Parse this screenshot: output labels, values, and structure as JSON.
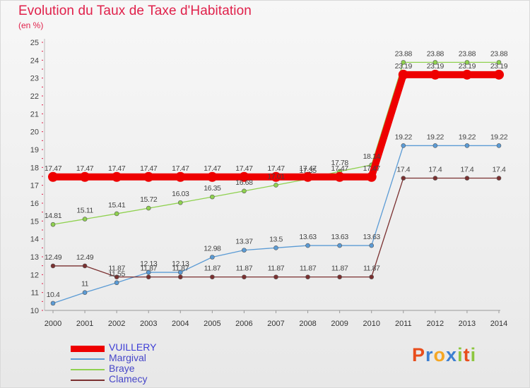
{
  "title": "Evolution du Taux de Taxe d'Habitation",
  "subtitle": "(en %)",
  "logo": {
    "letters": [
      "P",
      "r",
      "o",
      "x",
      "i",
      "t",
      "i"
    ],
    "colors": [
      "#e84d1c",
      "#3d7fd1",
      "#f5a623",
      "#3d7fd1",
      "#8dc63f",
      "#e84d1c",
      "#8dc63f"
    ]
  },
  "chart_data": {
    "type": "line",
    "title": "Evolution du Taux de Taxe d'Habitation",
    "ylabel": "(en %)",
    "xlabel": "",
    "x": [
      "2000",
      "2001",
      "2002",
      "2003",
      "2004",
      "2005",
      "2006",
      "2007",
      "2008",
      "2009",
      "2010",
      "2011",
      "2012",
      "2013",
      "2014"
    ],
    "ylim": [
      10,
      25
    ],
    "yticks": [
      10,
      11,
      12,
      13,
      14,
      15,
      16,
      17,
      18,
      19,
      20,
      21,
      22,
      23,
      24,
      25
    ],
    "grid": false,
    "legend": "bottom-left",
    "series": [
      {
        "name": "VUILLERY",
        "color": "#ee0000",
        "emphasis": true,
        "values": [
          17.47,
          17.47,
          17.47,
          17.47,
          17.47,
          17.47,
          17.47,
          17.47,
          17.47,
          17.47,
          17.47,
          23.19,
          23.19,
          23.19,
          23.19
        ],
        "labels": [
          "17.47",
          "17.47",
          "17.47",
          "17.47",
          "17.47",
          "17.47",
          "17.47",
          "17.47",
          "17.47",
          "17.47",
          "17.47",
          "23.19",
          "23.19",
          "23.19",
          "23.19"
        ]
      },
      {
        "name": "Margival",
        "color": "#5b9bd5",
        "values": [
          10.4,
          11,
          11.55,
          12.13,
          12.13,
          12.98,
          13.37,
          13.5,
          13.63,
          13.63,
          13.63,
          19.22,
          19.22,
          19.22,
          19.22
        ],
        "labels": [
          "10.4",
          "11",
          "11.55",
          "12.13",
          "12.13",
          "12.98",
          "13.37",
          "13.5",
          "13.63",
          "13.63",
          "13.63",
          "19.22",
          "19.22",
          "19.22",
          "19.22"
        ]
      },
      {
        "name": "Braye",
        "color": "#8fd14f",
        "values": [
          14.81,
          15.11,
          15.41,
          15.72,
          16.03,
          16.35,
          16.68,
          17.01,
          17.35,
          17.78,
          18.14,
          23.88,
          23.88,
          23.88,
          23.88
        ],
        "labels": [
          "14.81",
          "15.11",
          "15.41",
          "15.72",
          "16.03",
          "16.35",
          "16.68",
          "17.01",
          "17.35",
          "17.78",
          "18.14",
          "23.88",
          "23.88",
          "23.88",
          "23.88"
        ]
      },
      {
        "name": "Clamecy",
        "color": "#7a3030",
        "values": [
          12.49,
          12.49,
          11.87,
          11.87,
          11.87,
          11.87,
          11.87,
          11.87,
          11.87,
          11.87,
          11.87,
          17.4,
          17.4,
          17.4,
          17.4
        ],
        "labels": [
          "12.49",
          "12.49",
          "11.87",
          "11.87",
          "11.87",
          "11.87",
          "11.87",
          "11.87",
          "11.87",
          "11.87",
          "11.87",
          "17.4",
          "17.4",
          "17.4",
          "17.4"
        ]
      }
    ]
  }
}
